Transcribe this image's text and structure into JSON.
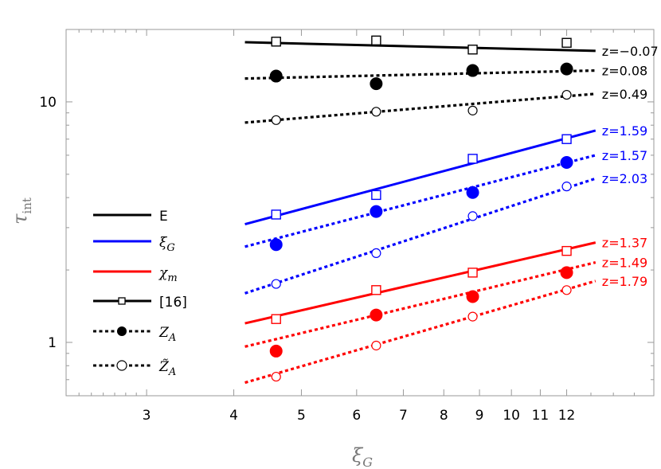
{
  "chart_data": {
    "type": "scatter",
    "title": "",
    "xlabel": "ξG",
    "ylabel": "τint",
    "xscale": "log",
    "yscale": "log",
    "xlim": [
      2.3,
      16
    ],
    "ylim": [
      0.6,
      20
    ],
    "xticks": [
      3,
      4,
      5,
      6,
      7,
      8,
      9,
      10,
      11,
      12
    ],
    "yticks": [
      1,
      10
    ],
    "grid": false,
    "legend_position": "left",
    "legend": [
      {
        "label": "E",
        "color": "#000000",
        "style": "solid",
        "marker": "none"
      },
      {
        "label": "ξG",
        "color": "#0000ff",
        "style": "solid",
        "marker": "none"
      },
      {
        "label": "χm",
        "color": "#ff0000",
        "style": "solid",
        "marker": "none"
      },
      {
        "label": "[16]",
        "color": "#000000",
        "style": "solid",
        "marker": "square"
      },
      {
        "label": "ZA",
        "color": "#000000",
        "style": "dotted",
        "marker": "filled-circle"
      },
      {
        "label": "Z̃A",
        "color": "#000000",
        "style": "dotted",
        "marker": "open-circle"
      }
    ],
    "series": [
      {
        "observable": "E",
        "estimator": "[16]",
        "color": "#000000",
        "marker": "square",
        "line": "solid",
        "fit_label": "z=−0.07",
        "fit_x": [
          4.15,
          13.2
        ],
        "fit_y": [
          17.7,
          16.3
        ],
        "x": [
          4.6,
          6.4,
          8.8,
          12.0
        ],
        "y": [
          17.8,
          18.0,
          16.5,
          17.6
        ]
      },
      {
        "observable": "E",
        "estimator": "ZA",
        "color": "#000000",
        "marker": "filled-circle",
        "line": "dotted",
        "fit_label": "z=0.08",
        "fit_x": [
          4.15,
          13.2
        ],
        "fit_y": [
          12.5,
          13.5
        ],
        "x": [
          4.6,
          6.4,
          8.8,
          12.0
        ],
        "y": [
          12.8,
          11.9,
          13.5,
          13.7
        ]
      },
      {
        "observable": "E",
        "estimator": "Z̃A",
        "color": "#000000",
        "marker": "open-circle",
        "line": "dotted",
        "fit_label": "z=0.49",
        "fit_x": [
          4.15,
          13.2
        ],
        "fit_y": [
          8.2,
          10.8
        ],
        "x": [
          4.6,
          6.4,
          8.8,
          12.0
        ],
        "y": [
          8.4,
          9.1,
          9.2,
          10.7
        ]
      },
      {
        "observable": "ξG",
        "estimator": "[16]",
        "color": "#0000ff",
        "marker": "square",
        "line": "solid",
        "fit_label": "z=1.59",
        "fit_x": [
          4.15,
          13.2
        ],
        "fit_y": [
          3.1,
          7.6
        ],
        "x": [
          4.6,
          6.4,
          8.8,
          12.0
        ],
        "y": [
          3.4,
          4.1,
          5.8,
          7.0
        ]
      },
      {
        "observable": "ξG",
        "estimator": "ZA",
        "color": "#0000ff",
        "marker": "filled-circle",
        "line": "dotted",
        "fit_label": "z=1.57",
        "fit_x": [
          4.15,
          13.2
        ],
        "fit_y": [
          2.5,
          6.0
        ],
        "x": [
          4.6,
          6.4,
          8.8,
          12.0
        ],
        "y": [
          2.55,
          3.5,
          4.2,
          5.6
        ]
      },
      {
        "observable": "ξG",
        "estimator": "Z̃A",
        "color": "#0000ff",
        "marker": "open-circle",
        "line": "dotted",
        "fit_label": "z=2.03",
        "fit_x": [
          4.15,
          13.2
        ],
        "fit_y": [
          1.6,
          4.8
        ],
        "x": [
          4.6,
          6.4,
          8.8,
          12.0
        ],
        "y": [
          1.75,
          2.35,
          3.35,
          4.45
        ]
      },
      {
        "observable": "χm",
        "estimator": "[16]",
        "color": "#ff0000",
        "marker": "square",
        "line": "solid",
        "fit_label": "z=1.37",
        "fit_x": [
          4.15,
          13.2
        ],
        "fit_y": [
          1.2,
          2.6
        ],
        "x": [
          4.6,
          6.4,
          8.8,
          12.0
        ],
        "y": [
          1.25,
          1.65,
          1.95,
          2.4
        ]
      },
      {
        "observable": "χm",
        "estimator": "ZA",
        "color": "#ff0000",
        "marker": "filled-circle",
        "line": "dotted",
        "fit_label": "z=1.49",
        "fit_x": [
          4.15,
          13.2
        ],
        "fit_y": [
          0.96,
          2.15
        ],
        "x": [
          4.6,
          6.4,
          8.8,
          12.0
        ],
        "y": [
          0.92,
          1.3,
          1.55,
          1.95
        ]
      },
      {
        "observable": "χm",
        "estimator": "Z̃A",
        "color": "#ff0000",
        "marker": "open-circle",
        "line": "dotted",
        "fit_label": "z=1.79",
        "fit_x": [
          4.15,
          13.2
        ],
        "fit_y": [
          0.68,
          1.8
        ],
        "x": [
          4.6,
          6.4,
          8.8,
          12.0
        ],
        "y": [
          0.72,
          0.97,
          1.28,
          1.65
        ]
      }
    ]
  }
}
